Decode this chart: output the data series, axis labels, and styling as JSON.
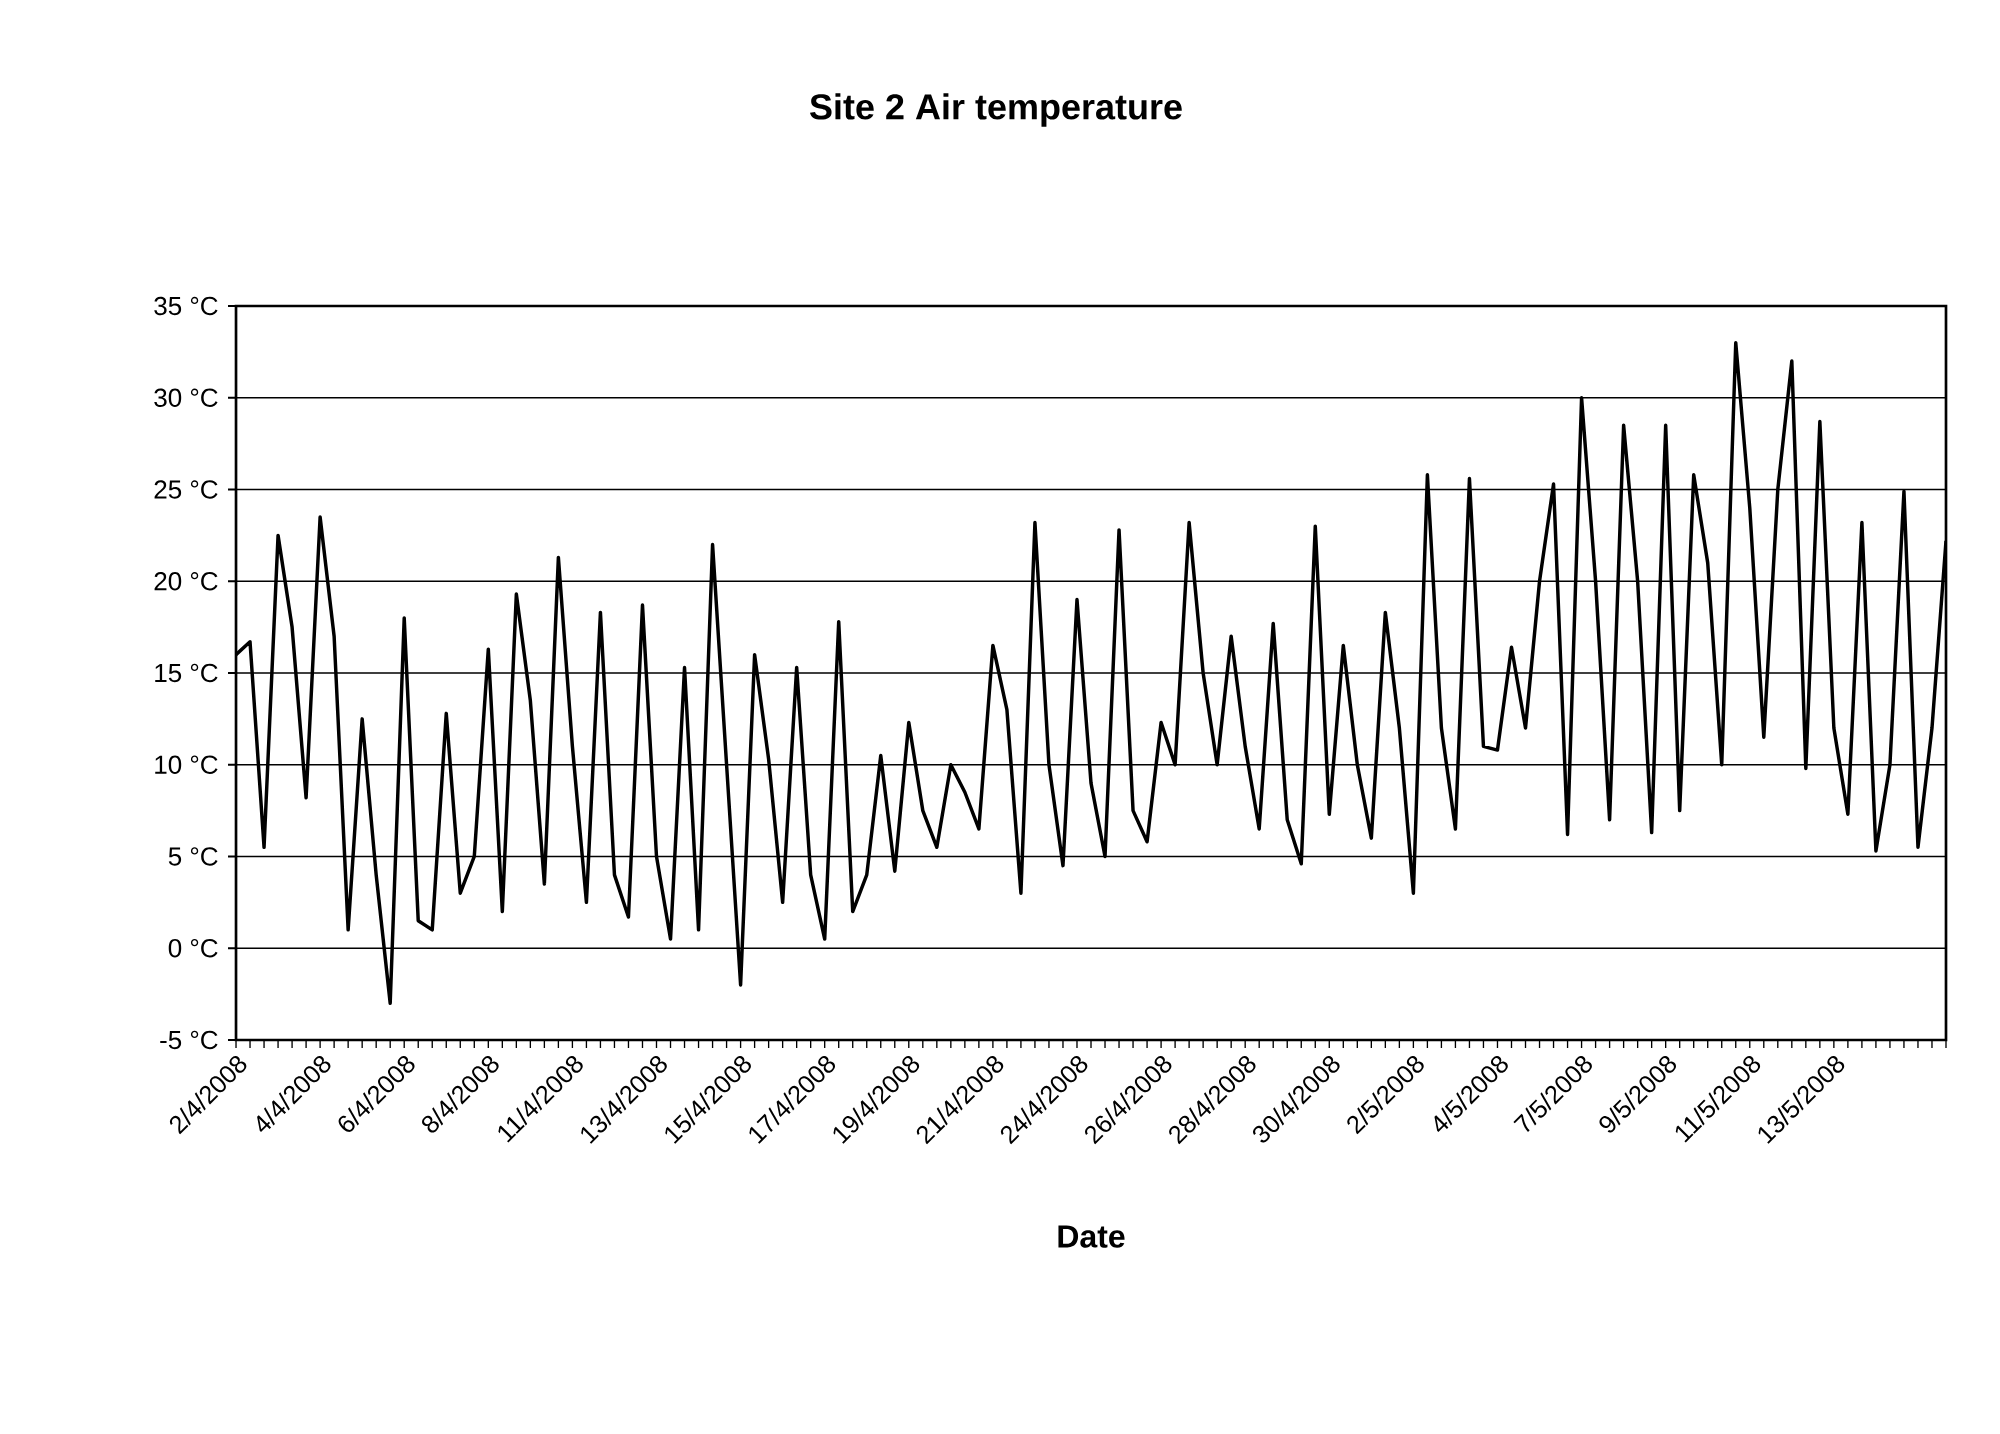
{
  "chart_data": {
    "type": "line",
    "title": "Site 2 Air temperature",
    "xlabel": "Date",
    "categories": [
      "2/4/2008",
      null,
      null,
      null,
      null,
      null,
      "4/4/2008",
      null,
      null,
      null,
      null,
      null,
      "6/4/2008",
      null,
      null,
      null,
      null,
      null,
      "8/4/2008",
      null,
      null,
      null,
      null,
      null,
      "11/4/2008",
      null,
      null,
      null,
      null,
      null,
      "13/4/2008",
      null,
      null,
      null,
      null,
      null,
      "15/4/2008",
      null,
      null,
      null,
      null,
      null,
      "17/4/2008",
      null,
      null,
      null,
      null,
      null,
      "19/4/2008",
      null,
      null,
      null,
      null,
      null,
      "21/4/2008",
      null,
      null,
      null,
      null,
      null,
      "24/4/2008",
      null,
      null,
      null,
      null,
      null,
      "26/4/2008",
      null,
      null,
      null,
      null,
      null,
      "28/4/2008",
      null,
      null,
      null,
      null,
      null,
      "30/4/2008",
      null,
      null,
      null,
      null,
      null,
      "2/5/2008",
      null,
      null,
      null,
      null,
      null,
      "4/5/2008",
      null,
      null,
      null,
      null,
      null,
      "7/5/2008",
      null,
      null,
      null,
      null,
      null,
      "9/5/2008",
      null,
      null,
      null,
      null,
      null,
      "11/5/2008",
      null,
      null,
      null,
      null,
      null,
      "13/5/2008",
      null,
      null,
      null,
      null,
      null,
      null,
      null,
      null
    ],
    "series": [
      {
        "color": "#000000",
        "values": [
          16.0,
          16.7,
          5.5,
          22.5,
          17.5,
          8.2,
          23.5,
          17,
          1.0,
          12.5,
          4,
          -3,
          18,
          1.5,
          1,
          12.8,
          3,
          5,
          16.3,
          2,
          19.3,
          13.5,
          3.5,
          21.3,
          11,
          2.5,
          18.3,
          4,
          1.7,
          18.7,
          5,
          0.5,
          15.3,
          1,
          22,
          10,
          -2,
          16,
          10.3,
          2.5,
          15.3,
          4,
          0.5,
          17.8,
          2,
          4,
          10.5,
          4.2,
          12.3,
          7.5,
          5.5,
          10,
          8.5,
          6.5,
          16.5,
          13,
          3,
          23.2,
          10,
          4.5,
          19,
          9,
          5,
          22.8,
          7.5,
          5.8,
          12.3,
          10,
          23.2,
          15,
          10,
          17,
          11,
          6.5,
          17.7,
          7,
          4.6,
          23,
          7.3,
          16.5,
          10,
          6,
          18.3,
          12,
          3,
          25.8,
          12,
          6.5,
          25.6,
          11,
          10.8,
          16.4,
          12,
          20,
          25.3,
          6.2,
          30,
          20,
          7,
          28.5,
          20,
          6.3,
          28.5,
          7.5,
          25.8,
          21,
          10,
          33,
          24,
          11.5,
          25,
          32,
          9.8,
          28.7,
          12,
          7.3,
          23.2,
          5.3,
          10,
          24.9,
          5.5,
          12,
          22.2
        ]
      }
    ],
    "ylim": [
      -5,
      35
    ],
    "yticks": [
      {
        "value": -5,
        "label": "-5 °C"
      },
      {
        "value": 0,
        "label": "0 °C"
      },
      {
        "value": 5,
        "label": "5 °C"
      },
      {
        "value": 10,
        "label": "10 °C"
      },
      {
        "value": 15,
        "label": "15 °C"
      },
      {
        "value": 20,
        "label": "20 °C"
      },
      {
        "value": 25,
        "label": "25 °C"
      },
      {
        "value": 30,
        "label": "30 °C"
      },
      {
        "value": 35,
        "label": "35 °C"
      }
    ],
    "grid": "y",
    "marker": "none",
    "line_style": "solid"
  }
}
